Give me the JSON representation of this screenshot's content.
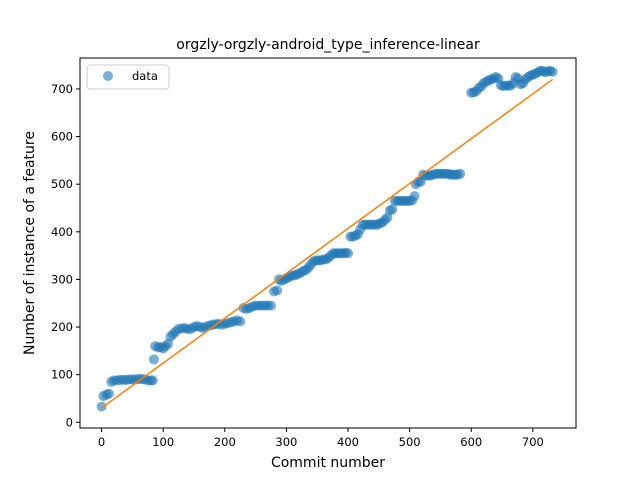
{
  "chart_data": {
    "type": "scatter",
    "title": "orgzly-orgzly-android_type_inference-linear",
    "xlabel": "Commit number",
    "ylabel": "Number of instance of a feature",
    "xlim": [
      -35,
      770
    ],
    "ylim": [
      -12,
      765
    ],
    "xticks": [
      0,
      100,
      200,
      300,
      400,
      500,
      600,
      700
    ],
    "yticks": [
      0,
      100,
      200,
      300,
      400,
      500,
      600,
      700
    ],
    "grid": false,
    "legend_position": "top-left",
    "colors": {
      "scatter": "#1f77b4",
      "fit": "#ff7f0e"
    },
    "series": [
      {
        "name": "data",
        "kind": "scatter",
        "points": [
          [
            0,
            33
          ],
          [
            3,
            55
          ],
          [
            8,
            58
          ],
          [
            12,
            60
          ],
          [
            16,
            85
          ],
          [
            20,
            88
          ],
          [
            25,
            88
          ],
          [
            30,
            89
          ],
          [
            35,
            89
          ],
          [
            40,
            89
          ],
          [
            45,
            90
          ],
          [
            50,
            90
          ],
          [
            55,
            90
          ],
          [
            60,
            91
          ],
          [
            65,
            91
          ],
          [
            70,
            90
          ],
          [
            75,
            88
          ],
          [
            80,
            88
          ],
          [
            83,
            88
          ],
          [
            85,
            132
          ],
          [
            87,
            160
          ],
          [
            92,
            157
          ],
          [
            96,
            158
          ],
          [
            100,
            155
          ],
          [
            104,
            160
          ],
          [
            108,
            165
          ],
          [
            112,
            180
          ],
          [
            116,
            185
          ],
          [
            120,
            190
          ],
          [
            125,
            196
          ],
          [
            130,
            197
          ],
          [
            135,
            198
          ],
          [
            140,
            196
          ],
          [
            145,
            196
          ],
          [
            150,
            200
          ],
          [
            155,
            202
          ],
          [
            160,
            200
          ],
          [
            165,
            198
          ],
          [
            170,
            201
          ],
          [
            175,
            203
          ],
          [
            180,
            205
          ],
          [
            185,
            206
          ],
          [
            190,
            207
          ],
          [
            195,
            205
          ],
          [
            200,
            207
          ],
          [
            205,
            208
          ],
          [
            210,
            210
          ],
          [
            215,
            212
          ],
          [
            220,
            214
          ],
          [
            225,
            212
          ],
          [
            230,
            240
          ],
          [
            235,
            238
          ],
          [
            240,
            240
          ],
          [
            245,
            243
          ],
          [
            250,
            245
          ],
          [
            255,
            245
          ],
          [
            260,
            245
          ],
          [
            265,
            245
          ],
          [
            270,
            245
          ],
          [
            275,
            245
          ],
          [
            280,
            275
          ],
          [
            285,
            277
          ],
          [
            288,
            300
          ],
          [
            292,
            297
          ],
          [
            296,
            300
          ],
          [
            300,
            302
          ],
          [
            304,
            305
          ],
          [
            308,
            308
          ],
          [
            312,
            308
          ],
          [
            316,
            310
          ],
          [
            320,
            312
          ],
          [
            324,
            315
          ],
          [
            328,
            318
          ],
          [
            332,
            320
          ],
          [
            336,
            325
          ],
          [
            340,
            332
          ],
          [
            344,
            338
          ],
          [
            348,
            340
          ],
          [
            352,
            340
          ],
          [
            356,
            340
          ],
          [
            360,
            342
          ],
          [
            364,
            342
          ],
          [
            368,
            345
          ],
          [
            372,
            350
          ],
          [
            376,
            355
          ],
          [
            380,
            355
          ],
          [
            384,
            355
          ],
          [
            388,
            355
          ],
          [
            392,
            355
          ],
          [
            396,
            356
          ],
          [
            400,
            355
          ],
          [
            404,
            390
          ],
          [
            408,
            390
          ],
          [
            412,
            392
          ],
          [
            416,
            395
          ],
          [
            420,
            405
          ],
          [
            424,
            415
          ],
          [
            428,
            415
          ],
          [
            432,
            415
          ],
          [
            436,
            415
          ],
          [
            440,
            415
          ],
          [
            444,
            415
          ],
          [
            448,
            415
          ],
          [
            452,
            418
          ],
          [
            456,
            420
          ],
          [
            460,
            425
          ],
          [
            464,
            430
          ],
          [
            468,
            445
          ],
          [
            472,
            447
          ],
          [
            476,
            465
          ],
          [
            480,
            465
          ],
          [
            484,
            465
          ],
          [
            488,
            465
          ],
          [
            492,
            465
          ],
          [
            496,
            465
          ],
          [
            500,
            465
          ],
          [
            504,
            466
          ],
          [
            508,
            475
          ],
          [
            510,
            500
          ],
          [
            514,
            505
          ],
          [
            518,
            505
          ],
          [
            522,
            520
          ],
          [
            526,
            518
          ],
          [
            530,
            518
          ],
          [
            534,
            518
          ],
          [
            538,
            520
          ],
          [
            542,
            522
          ],
          [
            546,
            522
          ],
          [
            550,
            522
          ],
          [
            554,
            522
          ],
          [
            558,
            522
          ],
          [
            562,
            522
          ],
          [
            566,
            520
          ],
          [
            570,
            520
          ],
          [
            574,
            520
          ],
          [
            578,
            520
          ],
          [
            582,
            522
          ],
          [
            600,
            692
          ],
          [
            604,
            693
          ],
          [
            608,
            695
          ],
          [
            612,
            702
          ],
          [
            616,
            705
          ],
          [
            620,
            712
          ],
          [
            624,
            715
          ],
          [
            628,
            718
          ],
          [
            632,
            720
          ],
          [
            636,
            722
          ],
          [
            640,
            725
          ],
          [
            644,
            722
          ],
          [
            648,
            708
          ],
          [
            652,
            706
          ],
          [
            656,
            707
          ],
          [
            660,
            707
          ],
          [
            664,
            707
          ],
          [
            668,
            712
          ],
          [
            672,
            725
          ],
          [
            676,
            722
          ],
          [
            680,
            710
          ],
          [
            684,
            712
          ],
          [
            688,
            720
          ],
          [
            692,
            725
          ],
          [
            696,
            728
          ],
          [
            700,
            730
          ],
          [
            704,
            732
          ],
          [
            708,
            735
          ],
          [
            712,
            738
          ],
          [
            716,
            738
          ],
          [
            720,
            735
          ],
          [
            724,
            737
          ],
          [
            728,
            738
          ],
          [
            732,
            736
          ]
        ]
      },
      {
        "name": "",
        "kind": "line",
        "points": [
          [
            0,
            30
          ],
          [
            732,
            720
          ]
        ]
      }
    ]
  }
}
